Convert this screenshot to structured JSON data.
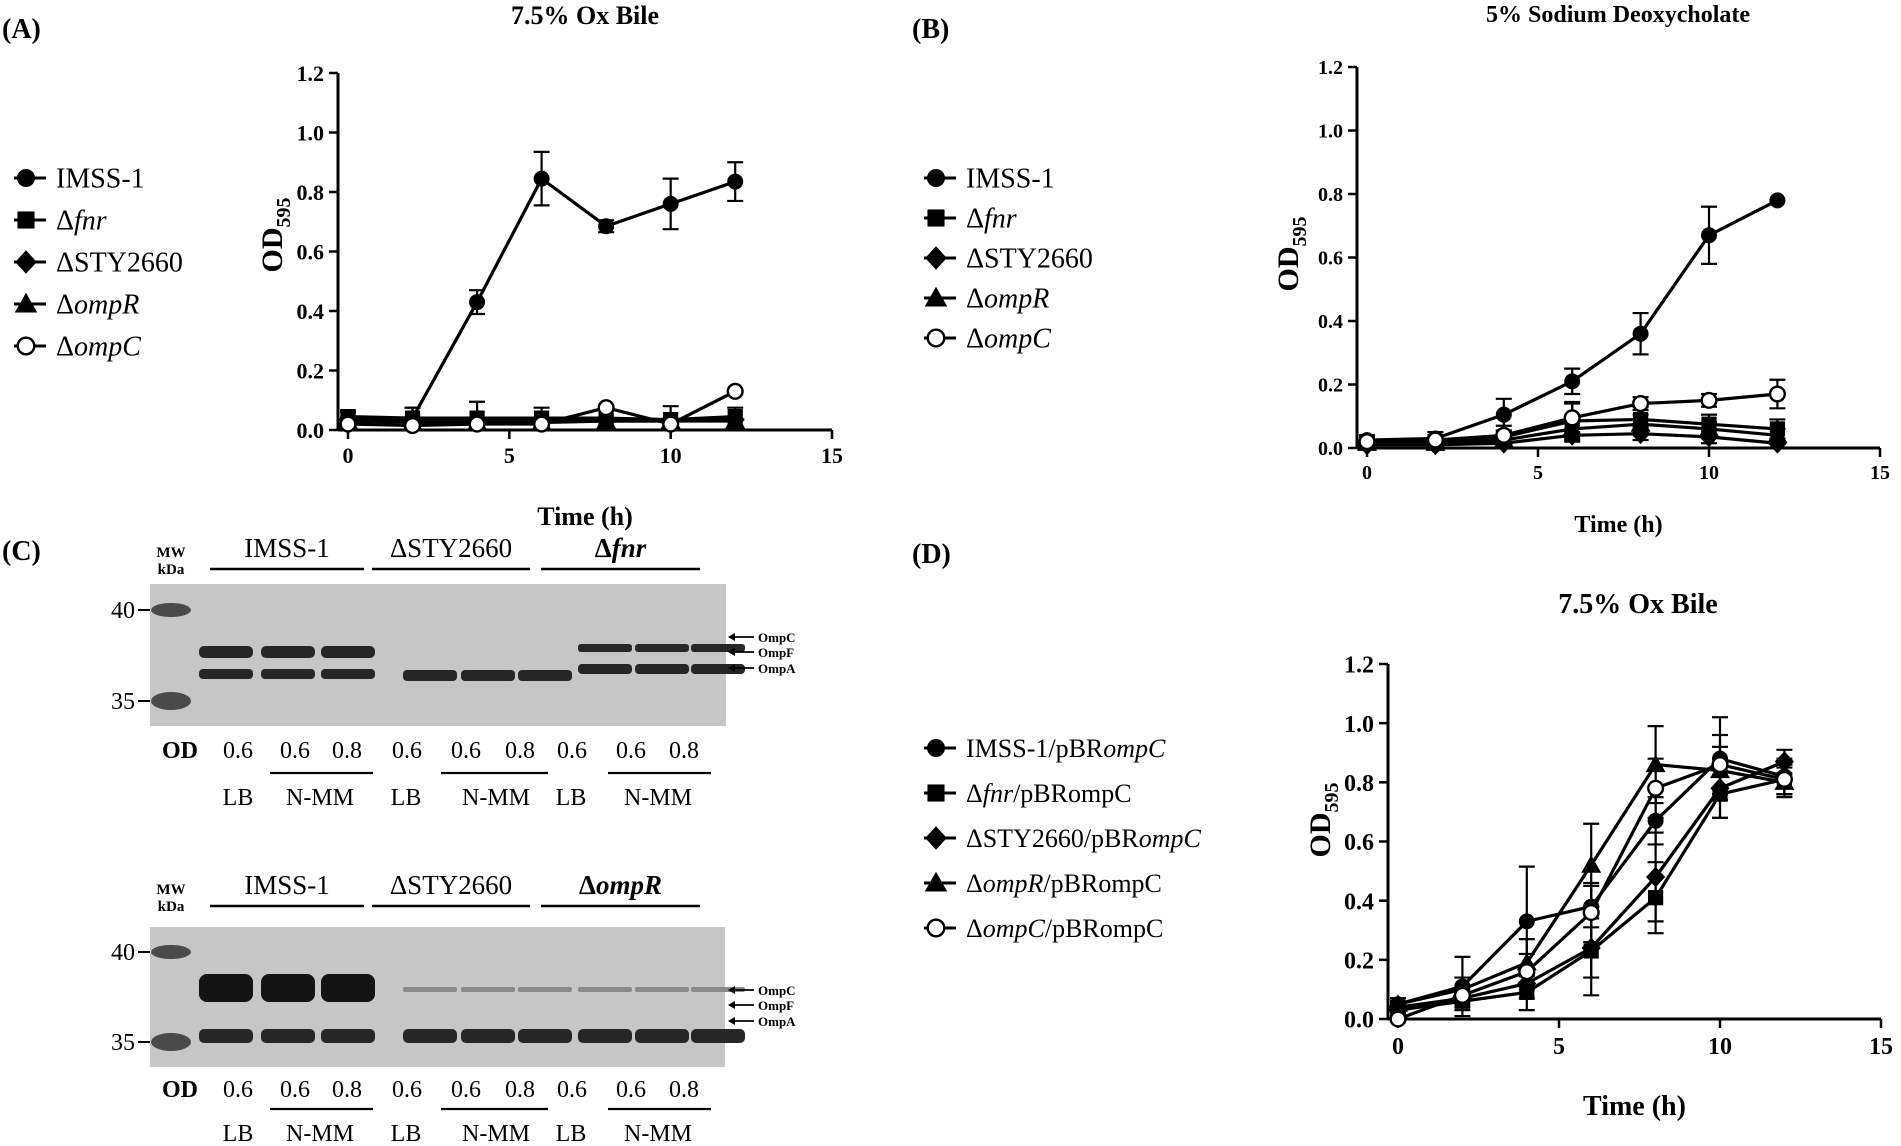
{
  "colors": {
    "ink": "#000000",
    "gel_bg": "#c6c6c6",
    "band": "#262626",
    "marker": "#4a4a4a"
  },
  "panel_labels": [
    "(A)",
    "(B)",
    "(C)",
    "(D)"
  ],
  "y_label_main": "OD",
  "y_label_sub": "595",
  "chart_data": [
    {
      "type": "line",
      "panel": "(A)",
      "title": "7.5% Ox Bile",
      "xlabel": "Time (h)",
      "ylabel": "OD595",
      "xlim": [
        0,
        15
      ],
      "ylim": [
        0,
        1.2
      ],
      "xticks": [
        0,
        5,
        10,
        15
      ],
      "xtick_labels": [
        "0",
        "5",
        "10",
        "15"
      ],
      "yticks": [
        0,
        0.2,
        0.4,
        0.6,
        0.8,
        1.0,
        1.2
      ],
      "ytick_labels": [
        "0.0",
        "0.2",
        "0.4",
        "0.6",
        "0.8",
        "1.0",
        "1.2"
      ],
      "x": [
        0,
        2,
        4,
        6,
        8,
        10,
        12
      ],
      "legend_position": "left",
      "series": [
        {
          "name": "IMSS-1",
          "prefix": "",
          "italic": "",
          "suffix": "IMSS-1",
          "marker": "circle",
          "values": [
            0.04,
            0.04,
            0.43,
            0.845,
            0.685,
            0.76,
            0.835
          ],
          "errors": [
            0.02,
            0.035,
            0.04,
            0.09,
            0.02,
            0.085,
            0.065
          ]
        },
        {
          "name": "Δfnr",
          "prefix": "Δ",
          "italic": "fnr",
          "suffix": "",
          "marker": "square",
          "values": [
            0.045,
            0.04,
            0.04,
            0.04,
            0.04,
            0.035,
            0.045
          ],
          "errors": [
            0.02,
            0.035,
            0.055,
            0.035,
            0.035,
            0.045,
            0.03
          ]
        },
        {
          "name": "ΔSTY2660",
          "prefix": "ΔSTY2660",
          "italic": "",
          "suffix": "",
          "marker": "diamond",
          "values": [
            0.035,
            0.03,
            0.03,
            0.03,
            0.03,
            0.03,
            0.035
          ],
          "errors": [
            0.01,
            0.01,
            0.01,
            0.01,
            0.01,
            0.01,
            0.01
          ]
        },
        {
          "name": "ΔompR",
          "prefix": "Δ",
          "italic": "ompR",
          "suffix": "",
          "marker": "triangle",
          "values": [
            0.03,
            0.025,
            0.025,
            0.025,
            0.03,
            0.03,
            0.03
          ],
          "errors": [
            0.01,
            0.01,
            0.01,
            0.01,
            0.01,
            0.01,
            0.01
          ]
        },
        {
          "name": "ΔompC",
          "prefix": "Δ",
          "italic": "ompC",
          "suffix": "",
          "marker": "open-circle",
          "values": [
            0.02,
            0.015,
            0.02,
            0.02,
            0.075,
            0.02,
            0.13
          ],
          "errors": [
            0.01,
            0.01,
            0.01,
            0.01,
            0.01,
            0.01,
            0.01
          ]
        }
      ]
    },
    {
      "type": "line",
      "panel": "(B)",
      "title": "5% Sodium Deoxycholate",
      "xlabel": "Time (h)",
      "ylabel": "OD595",
      "xlim": [
        0,
        15
      ],
      "ylim": [
        0,
        1.2
      ],
      "xticks": [
        0,
        5,
        10,
        15
      ],
      "xtick_labels": [
        "0",
        "5",
        "10",
        "15"
      ],
      "yticks": [
        0,
        0.2,
        0.4,
        0.6,
        0.8,
        1.0,
        1.2
      ],
      "ytick_labels": [
        "0.0",
        "0.2",
        "0.4",
        "0.6",
        "0.8",
        "1.0",
        "1.2"
      ],
      "x": [
        0,
        2,
        4,
        6,
        8,
        10,
        12
      ],
      "legend_position": "left",
      "series": [
        {
          "name": "IMSS-1",
          "prefix": "",
          "italic": "",
          "suffix": "IMSS-1",
          "marker": "circle",
          "values": [
            0.025,
            0.03,
            0.105,
            0.21,
            0.36,
            0.67,
            0.78
          ],
          "errors": [
            0.015,
            0.02,
            0.05,
            0.04,
            0.065,
            0.09,
            0.01
          ]
        },
        {
          "name": "Δfnr",
          "prefix": "Δ",
          "italic": "fnr",
          "suffix": "",
          "marker": "square",
          "values": [
            0.02,
            0.02,
            0.035,
            0.085,
            0.09,
            0.075,
            0.06
          ],
          "errors": [
            0.015,
            0.015,
            0.02,
            0.06,
            0.04,
            0.03,
            0.03
          ]
        },
        {
          "name": "ΔSTY2660",
          "prefix": "ΔSTY2660",
          "italic": "",
          "suffix": "",
          "marker": "diamond",
          "values": [
            0.01,
            0.01,
            0.015,
            0.04,
            0.045,
            0.035,
            0.015
          ],
          "errors": [
            0.01,
            0.01,
            0.01,
            0.02,
            0.02,
            0.02,
            0.01
          ]
        },
        {
          "name": "ΔompR",
          "prefix": "Δ",
          "italic": "ompR",
          "suffix": "",
          "marker": "triangle",
          "values": [
            0.015,
            0.015,
            0.025,
            0.06,
            0.075,
            0.06,
            0.04
          ],
          "errors": [
            0.01,
            0.01,
            0.015,
            0.03,
            0.03,
            0.02,
            0.02
          ]
        },
        {
          "name": "ΔompC",
          "prefix": "Δ",
          "italic": "ompC",
          "suffix": "",
          "marker": "open-circle",
          "values": [
            0.02,
            0.025,
            0.04,
            0.095,
            0.14,
            0.15,
            0.17
          ],
          "errors": [
            0.01,
            0.015,
            0.03,
            0.045,
            0.02,
            0.02,
            0.045
          ]
        }
      ]
    },
    {
      "type": "line",
      "panel": "(D)",
      "title": "7.5% Ox Bile",
      "xlabel": "Time (h)",
      "ylabel": "OD595",
      "xlim": [
        0,
        15
      ],
      "ylim": [
        0,
        1.2
      ],
      "xticks": [
        0,
        5,
        10,
        15
      ],
      "xtick_labels": [
        "0",
        "5",
        "10",
        "15"
      ],
      "yticks": [
        0,
        0.2,
        0.4,
        0.6,
        0.8,
        1.0,
        1.2
      ],
      "ytick_labels": [
        "0.0",
        "0.2",
        "0.4",
        "0.6",
        "0.8",
        "1.0",
        "1.2"
      ],
      "x": [
        0,
        2,
        4,
        6,
        8,
        10,
        12
      ],
      "legend_position": "left",
      "series": [
        {
          "name": "IMSS-1/pBRompC",
          "prefix": "IMSS-1/pBR",
          "italic": "ompC",
          "suffix": "",
          "marker": "circle",
          "values": [
            0.05,
            0.11,
            0.33,
            0.38,
            0.67,
            0.88,
            0.82
          ],
          "errors": [
            0.02,
            0.1,
            0.185,
            0.07,
            0.08,
            0.14,
            0.06
          ]
        },
        {
          "name": "Δfnr/pBRompC",
          "prefix": "Δ",
          "italic": "fnr",
          "suffix": "/pBRompC",
          "marker": "square",
          "values": [
            0.03,
            0.06,
            0.09,
            0.23,
            0.41,
            0.76,
            0.81
          ],
          "errors": [
            0.02,
            0.03,
            0.06,
            0.15,
            0.12,
            0.08,
            0.05
          ]
        },
        {
          "name": "ΔSTY2660/pBRompC",
          "prefix": "ΔSTY2660/pBR",
          "italic": "ompC",
          "suffix": "",
          "marker": "diamond",
          "values": [
            0.04,
            0.07,
            0.12,
            0.24,
            0.48,
            0.78,
            0.87
          ],
          "errors": [
            0.02,
            0.03,
            0.05,
            0.1,
            0.15,
            0.1,
            0.04
          ]
        },
        {
          "name": "ΔompR/pBRompC",
          "prefix": "Δ",
          "italic": "ompR",
          "suffix": "/pBRompC",
          "marker": "triangle",
          "values": [
            0.05,
            0.1,
            0.19,
            0.52,
            0.86,
            0.84,
            0.8
          ],
          "errors": [
            0.02,
            0.04,
            0.08,
            0.14,
            0.13,
            0.08,
            0.05
          ]
        },
        {
          "name": "ΔompC/pBRompC",
          "prefix": "Δ",
          "italic": "ompC",
          "suffix": "/pBRompC",
          "marker": "open-circle",
          "values": [
            0.0,
            0.08,
            0.16,
            0.36,
            0.78,
            0.86,
            0.81
          ],
          "errors": [
            0.01,
            0.03,
            0.06,
            0.1,
            0.1,
            0.1,
            0.05
          ]
        }
      ]
    }
  ],
  "gels": [
    {
      "mw_label": "MW",
      "kda_label": "kDa",
      "markers": [
        "40",
        "35"
      ],
      "groups": [
        "IMSS-1",
        "ΔSTY2660",
        "Δfnr"
      ],
      "group_italic": [
        "",
        "",
        "fnr"
      ],
      "band_labels": [
        "OmpC",
        "OmpF",
        "OmpA"
      ],
      "od_label": "OD",
      "od_values": [
        "0.6",
        "0.6",
        "0.8",
        "0.6",
        "0.6",
        "0.8",
        "0.6",
        "0.6",
        "0.8"
      ],
      "media": [
        "LB",
        "N-MM",
        "LB",
        "N-MM",
        "LB",
        "N-MM"
      ]
    },
    {
      "mw_label": "MW",
      "kda_label": "kDa",
      "markers": [
        "40",
        "35"
      ],
      "groups": [
        "IMSS-1",
        "ΔSTY2660",
        "ΔompR"
      ],
      "group_italic": [
        "",
        "",
        "ompR"
      ],
      "band_labels": [
        "OmpC",
        "OmpF",
        "OmpA"
      ],
      "od_label": "OD",
      "od_values": [
        "0.6",
        "0.6",
        "0.8",
        "0.6",
        "0.6",
        "0.8",
        "0.6",
        "0.6",
        "0.8"
      ],
      "media": [
        "LB",
        "N-MM",
        "LB",
        "N-MM",
        "LB",
        "N-MM"
      ]
    }
  ]
}
